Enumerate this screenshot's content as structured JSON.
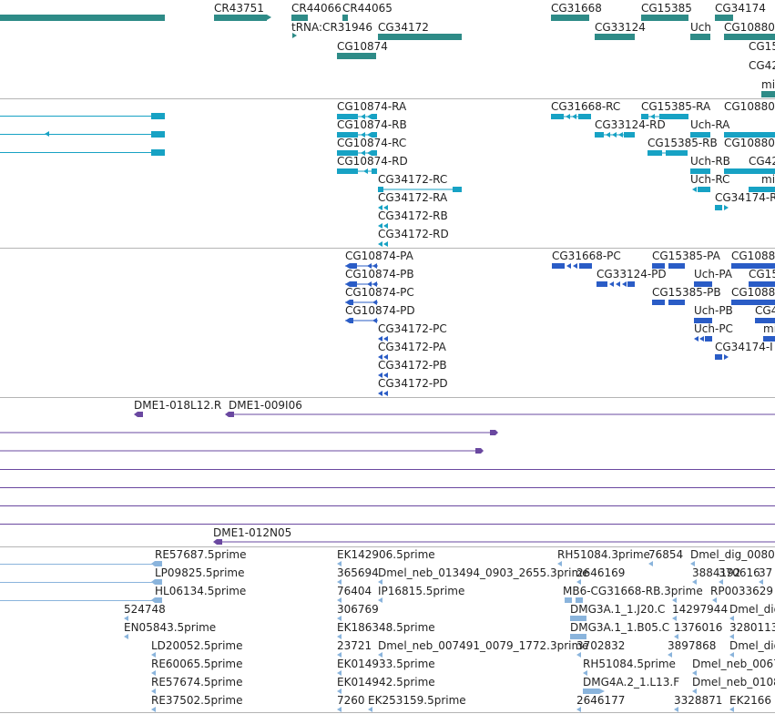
{
  "colors": {
    "gene": "#2e8b87",
    "transcript": "#17a2c4",
    "protein": "#2a5cc6",
    "clone": "#6a48a0",
    "est": "#8ab4dc",
    "separator": "#b5b5b5"
  },
  "tracks": {
    "genes": {
      "labels": [
        "CR43751",
        "CR44066",
        "CR44065",
        "tRNA:CR31946",
        "CG34172",
        "CG10874",
        "CG31668",
        "CG33124",
        "CG15385",
        "Uch",
        "CG34174",
        "CG10880",
        "CG15",
        "CG42",
        "mi"
      ]
    },
    "transcripts": {
      "labels": [
        "CG10874-RA",
        "CG10874-RB",
        "CG10874-RC",
        "CG10874-RD",
        "CG34172-RC",
        "CG34172-RA",
        "CG34172-RB",
        "CG34172-RD",
        "CG31668-RC",
        "CG33124-RD",
        "CG15385-RA",
        "CG15385-RB",
        "Uch-RA",
        "Uch-RB",
        "Uch-RC",
        "CG10880",
        "CG10880",
        "CG42",
        "mi",
        "CG34174-R"
      ]
    },
    "proteins": {
      "labels": [
        "CG10874-PA",
        "CG10874-PB",
        "CG10874-PC",
        "CG10874-PD",
        "CG34172-PC",
        "CG34172-PA",
        "CG34172-PB",
        "CG34172-PD",
        "CG31668-PC",
        "CG33124-PD",
        "CG15385-PA",
        "CG15385-PB",
        "Uch-PA",
        "Uch-PB",
        "Uch-PC",
        "CG1088",
        "CG15",
        "CG1088",
        "CG4",
        "mi",
        "CG34174-I"
      ]
    },
    "clones": {
      "labels": [
        "DME1-018L12.R",
        "DME1-009I06",
        "DME1-012N05"
      ]
    },
    "ests": {
      "labels": [
        "RE57687.5prime",
        "LP09825.5prime",
        "HL06134.5prime",
        "524748",
        "EN05843.5prime",
        "LD20052.5prime",
        "RE60065.5prime",
        "RE57674.5prime",
        "RE37502.5prime",
        "EK142906.5prime",
        "365694",
        "Dmel_neb_013494_0903_2655.3prime",
        "76404",
        "IP16815.5prime",
        "306769",
        "EK186348.5prime",
        "23721",
        "Dmel_neb_007491_0079_1772.3prime",
        "EK014933.5prime",
        "EK014942.5prime",
        "7260",
        "EK253159.5prime",
        "RH51084.3prime",
        "76854",
        "Dmel_dig_0080",
        "2646169",
        "3884192",
        "370616",
        "37",
        "MB6-CG31668-RB.3prime",
        "RP0033629",
        "DMG3A.1_1.J20.C",
        "14297944",
        "Dmel_dig",
        "DMG3A.1_1.B05.C",
        "1376016",
        "3280113",
        "3702832",
        "3897868",
        "Dmel_dig",
        "RH51084.5prime",
        "Dmel_neb_0067",
        "DMG4A.2_1.L13.F",
        "Dmel_neb_0108",
        "2646177",
        "3328871",
        "EK2166"
      ]
    }
  }
}
